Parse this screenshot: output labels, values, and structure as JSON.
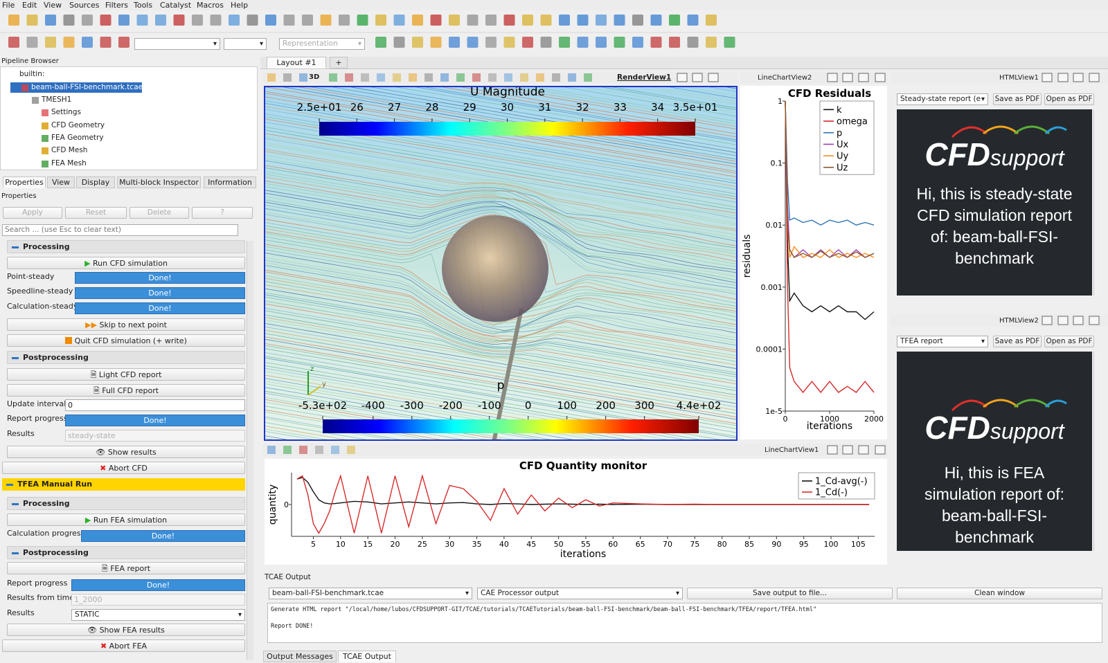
{
  "menu": [
    "File",
    "Edit",
    "View",
    "Sources",
    "Filters",
    "Tools",
    "Catalyst",
    "Macros",
    "Help"
  ],
  "toolbar": {
    "representation": "Representation"
  },
  "pipeline_browser": {
    "title": "Pipeline Browser",
    "items": [
      "builtin:",
      "beam-ball-FSI-benchmark.tcae",
      "TMESH1",
      "Settings",
      "CFD Geometry",
      "FEA Geometry",
      "CFD Mesh",
      "FEA Mesh"
    ]
  },
  "tabs": [
    "Properties",
    "View",
    "Display",
    "Multi-block Inspector",
    "Information"
  ],
  "properties": {
    "title": "Properties",
    "buttons": [
      "Apply",
      "Reset",
      "Delete",
      "?"
    ],
    "search": "Search ... (use Esc to clear text)"
  },
  "cfd": {
    "processing": "Processing",
    "run": "Run CFD simulation",
    "point_steady": "Point-steady",
    "speedline_steady": "Speedline-steady",
    "calculation_steady": "Calculation-steady",
    "done": "Done!",
    "skip": "Skip to next point",
    "quit": "Quit CFD simulation (+ write)",
    "postprocessing": "Postprocessing",
    "light_report": "Light CFD report",
    "full_report": "Full CFD report",
    "update_interval": "Update interval",
    "update_interval_value": 0,
    "report_progress": "Report progress",
    "results": "Results",
    "results_value": "steady-state",
    "show_results": "Show results",
    "abort": "Abort CFD"
  },
  "tfea": {
    "title": "TFEA Manual Run",
    "processing": "Processing",
    "run": "Run FEA simulation",
    "calculation_progress": "Calculation progress",
    "postprocessing": "Postprocessing",
    "report": "FEA report",
    "report_progress": "Report progress",
    "results_from_time": "Results from time",
    "results_from_time_value": "1_2000",
    "results": "Results",
    "results_value": "STATIC",
    "show_results": "Show FEA results",
    "abort": "Abort FEA"
  },
  "layout": {
    "tab": "Layout #1",
    "plus": "+"
  },
  "render_view": {
    "name": "RenderView1",
    "mode": "3D",
    "u_title": "U Magnitude",
    "u_ticks": [
      {
        "value": 25,
        "label": "2.5e+01"
      },
      26,
      27,
      28,
      29,
      30,
      31,
      32,
      33,
      34,
      {
        "value": 35,
        "label": "3.5e+01"
      }
    ],
    "p_title": "p",
    "p_ticks": [
      {
        "value": -530,
        "label": "-5.3e+02"
      },
      -400,
      -300,
      -200,
      -100,
      0,
      100,
      200,
      300,
      {
        "value": 440,
        "label": "4.4e+02"
      }
    ],
    "axes": [
      "z",
      "y"
    ]
  },
  "views": {
    "chart2": "LineChartView2",
    "html1": "HTMLView1",
    "html2": "HTMLView2",
    "chart1": "LineChartView1"
  },
  "html_view1": {
    "combo": "Steady-state report (e",
    "save": "Save as PDF",
    "open": "Open as PDF",
    "logo_main": "CFD",
    "logo_sub": "support",
    "message": "Hi, this is steady-state CFD simulation report of: beam-ball-FSI-benchmark"
  },
  "html_view2": {
    "combo": "TFEA report",
    "save": "Save as PDF",
    "open": "Open as PDF",
    "logo_main": "CFD",
    "logo_sub": "support",
    "message": "Hi, this is FEA simulation report of: beam-ball-FSI-benchmark"
  },
  "chart_data": [
    {
      "type": "line",
      "title": "CFD Residuals",
      "x_label": "iterations",
      "y_label": "residuals",
      "log_y": true,
      "legend": "top-right",
      "xlim": [
        0,
        2000
      ],
      "ylim": [
        1e-05,
        1
      ],
      "xticks": [
        0,
        1000,
        2000
      ],
      "yticks": [
        1,
        0.1,
        0.01,
        0.001,
        0.0001,
        {
          "value": 1e-05,
          "label": "1e-5"
        }
      ],
      "x": [
        0,
        50,
        100,
        200,
        400,
        600,
        800,
        1000,
        1200,
        1400,
        1600,
        1800,
        2000
      ],
      "series": [
        {
          "name": "k",
          "color": "#111111",
          "values": [
            1,
            0.005,
            0.0006,
            0.0008,
            0.0005,
            0.0004,
            0.0005,
            0.0004,
            0.0005,
            0.0004,
            0.0004,
            0.0003,
            0.0004
          ]
        },
        {
          "name": "omega",
          "color": "#d62a2a",
          "values": [
            1,
            0.001,
            5e-05,
            3e-05,
            2e-05,
            3e-05,
            2e-05,
            3e-05,
            2e-05,
            2.5e-05,
            2e-05,
            3e-05,
            2e-05
          ]
        },
        {
          "name": "p",
          "color": "#2f74b5",
          "values": [
            1,
            0.05,
            0.012,
            0.013,
            0.011,
            0.012,
            0.01,
            0.012,
            0.011,
            0.012,
            0.01,
            0.011,
            0.01
          ]
        },
        {
          "name": "Ux",
          "color": "#9b3fb5",
          "values": [
            1,
            0.02,
            0.004,
            0.003,
            0.004,
            0.003,
            0.004,
            0.003,
            0.004,
            0.003,
            0.004,
            0.003,
            0.0035
          ]
        },
        {
          "name": "Uy",
          "color": "#ff8c1a",
          "values": [
            1,
            0.01,
            0.003,
            0.0045,
            0.003,
            0.0035,
            0.003,
            0.004,
            0.003,
            0.0035,
            0.003,
            0.0035,
            0.003
          ]
        },
        {
          "name": "Uz",
          "color": "#8b5a2b",
          "values": [
            1,
            0.01,
            0.004,
            0.003,
            0.0035,
            0.003,
            0.0038,
            0.003,
            0.0035,
            0.003,
            0.0037,
            0.003,
            0.0035
          ]
        }
      ]
    },
    {
      "type": "line",
      "title": "CFD Quantity monitor",
      "x_label": "iterations",
      "y_label": "quantity",
      "log_y": false,
      "legend": "top-right",
      "xlim": [
        1,
        108
      ],
      "ylim": [
        -1,
        1
      ],
      "xticks": [
        5,
        10,
        15,
        20,
        25,
        30,
        35,
        40,
        45,
        50,
        55,
        60,
        65,
        70,
        75,
        80,
        85,
        90,
        95,
        100,
        105
      ],
      "yticks": [
        0
      ],
      "x": [
        2,
        3,
        4,
        5,
        6,
        7,
        8,
        9,
        10,
        12.5,
        15,
        17.5,
        20,
        22.5,
        25,
        27.5,
        30,
        32.5,
        35,
        37.5,
        40,
        42.5,
        45,
        47.5,
        50,
        52.5,
        55,
        57.5,
        60,
        65,
        70,
        75,
        80,
        90,
        100,
        107
      ],
      "series": [
        {
          "name": "1_Cd-avg(-)",
          "color": "#111111",
          "values": [
            0.8,
            0.85,
            0.7,
            0.4,
            0.15,
            0.05,
            0.02,
            0.03,
            0.05,
            0.1,
            0.08,
            0.02,
            0.05,
            0.08,
            0.05,
            0.02,
            0.05,
            0.06,
            0.02,
            0,
            0.03,
            0.02,
            0,
            0.01,
            0.02,
            0.01,
            0,
            0.01,
            0,
            0.01,
            0,
            0,
            0,
            0,
            0,
            0
          ]
        },
        {
          "name": "1_Cd(-)",
          "color": "#d62a2a",
          "values": [
            0.8,
            0.9,
            0.3,
            -0.6,
            -0.9,
            -0.6,
            -0.2,
            0.4,
            0.9,
            -0.9,
            0.9,
            -0.9,
            0.9,
            -0.7,
            0.9,
            -0.6,
            0.6,
            0.5,
            0.1,
            -0.5,
            0.5,
            -0.3,
            0.3,
            -0.2,
            0.2,
            -0.1,
            0.15,
            -0.05,
            0.05,
            0.02,
            0,
            0.01,
            0,
            0,
            0,
            0
          ]
        }
      ]
    }
  ],
  "output": {
    "title": "TCAE Output",
    "file_combo": "beam-ball-FSI-benchmark.tcae",
    "source_combo": "CAE Processor output",
    "save": "Save output to file...",
    "clean": "Clean window",
    "lines": [
      "Generate HTML report \"/local/home/lubos/CFDSUPPORT-GIT/TCAE/tutorials/TCAETutorials/beam-ball-FSI-benchmark/beam-ball-FSI-benchmark/TFEA/report/TFEA.html\"",
      "Report DONE!"
    ],
    "tabs": [
      "Output Messages",
      "TCAE Output"
    ]
  }
}
